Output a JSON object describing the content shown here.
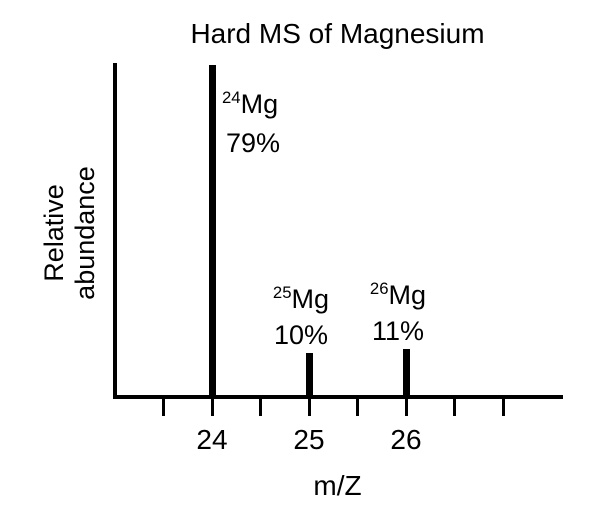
{
  "title": "Hard MS of Magnesium",
  "chart_data": {
    "type": "bar",
    "title": "Hard MS of Magnesium",
    "xlabel": "m/Z",
    "ylabel": "Relative abundance",
    "ylabel_line1": "Relative",
    "ylabel_line2": "abundance",
    "x": [
      24,
      25,
      26
    ],
    "values": [
      79,
      10,
      11
    ],
    "ylim": [
      0,
      100
    ],
    "grid": false,
    "legend": "none",
    "peaks": [
      {
        "mz": 24,
        "value": 79,
        "isotope_sup": "24",
        "isotope_symbol": "Mg",
        "abundance_label": "79%"
      },
      {
        "mz": 25,
        "value": 10,
        "isotope_sup": "25",
        "isotope_symbol": "Mg",
        "abundance_label": "10%"
      },
      {
        "mz": 26,
        "value": 11,
        "isotope_sup": "26",
        "isotope_symbol": "Mg",
        "abundance_label": "11%"
      }
    ],
    "x_ticks": [
      {
        "mz": 23.5,
        "label": ""
      },
      {
        "mz": 24,
        "label": "24"
      },
      {
        "mz": 24.5,
        "label": ""
      },
      {
        "mz": 25,
        "label": "25"
      },
      {
        "mz": 25.5,
        "label": ""
      },
      {
        "mz": 26,
        "label": "26"
      },
      {
        "mz": 26.5,
        "label": ""
      },
      {
        "mz": 27,
        "label": ""
      }
    ],
    "colors": {
      "ink": "#000000",
      "background": "#ffffff"
    }
  }
}
